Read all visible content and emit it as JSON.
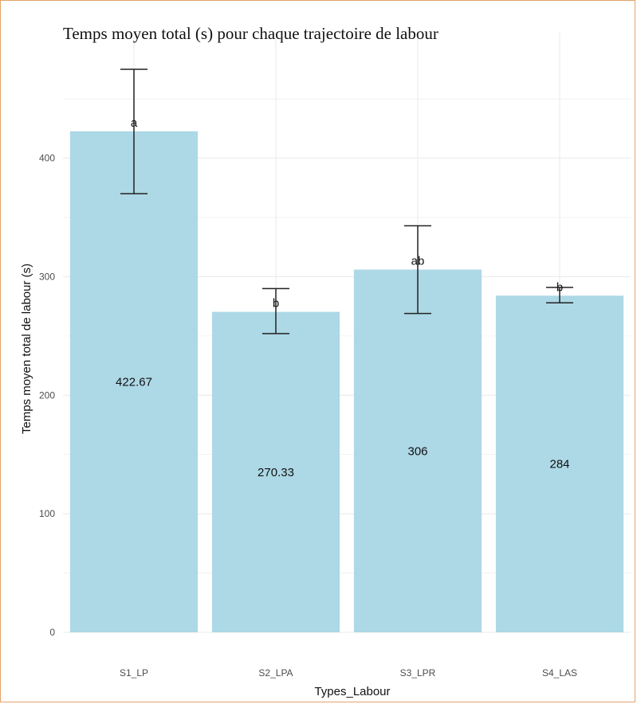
{
  "chart_data": {
    "type": "bar",
    "title": "Temps moyen total (s) pour chaque trajectoire de labour",
    "xlabel": "Types_Labour",
    "ylabel": "Temps moyen total de labour (s)",
    "categories": [
      "S1_LP",
      "S2_LPA",
      "S3_LPR",
      "S4_LAS"
    ],
    "values": [
      422.67,
      270.33,
      306,
      284
    ],
    "value_labels": [
      "422.67",
      "270.33",
      "306",
      "284"
    ],
    "error_bars": [
      {
        "low": 370,
        "high": 475
      },
      {
        "low": 252,
        "high": 290
      },
      {
        "low": 269,
        "high": 343
      },
      {
        "low": 278,
        "high": 291
      }
    ],
    "group_letters": [
      "a",
      "b",
      "ab",
      "b"
    ],
    "ylim": [
      0,
      475
    ],
    "yticks": [
      0,
      100,
      200,
      300,
      400
    ],
    "grid": true,
    "legend": "none",
    "colors": {
      "bar": "#add8e6",
      "grid": "#ebebeb",
      "error": "#222222"
    }
  }
}
